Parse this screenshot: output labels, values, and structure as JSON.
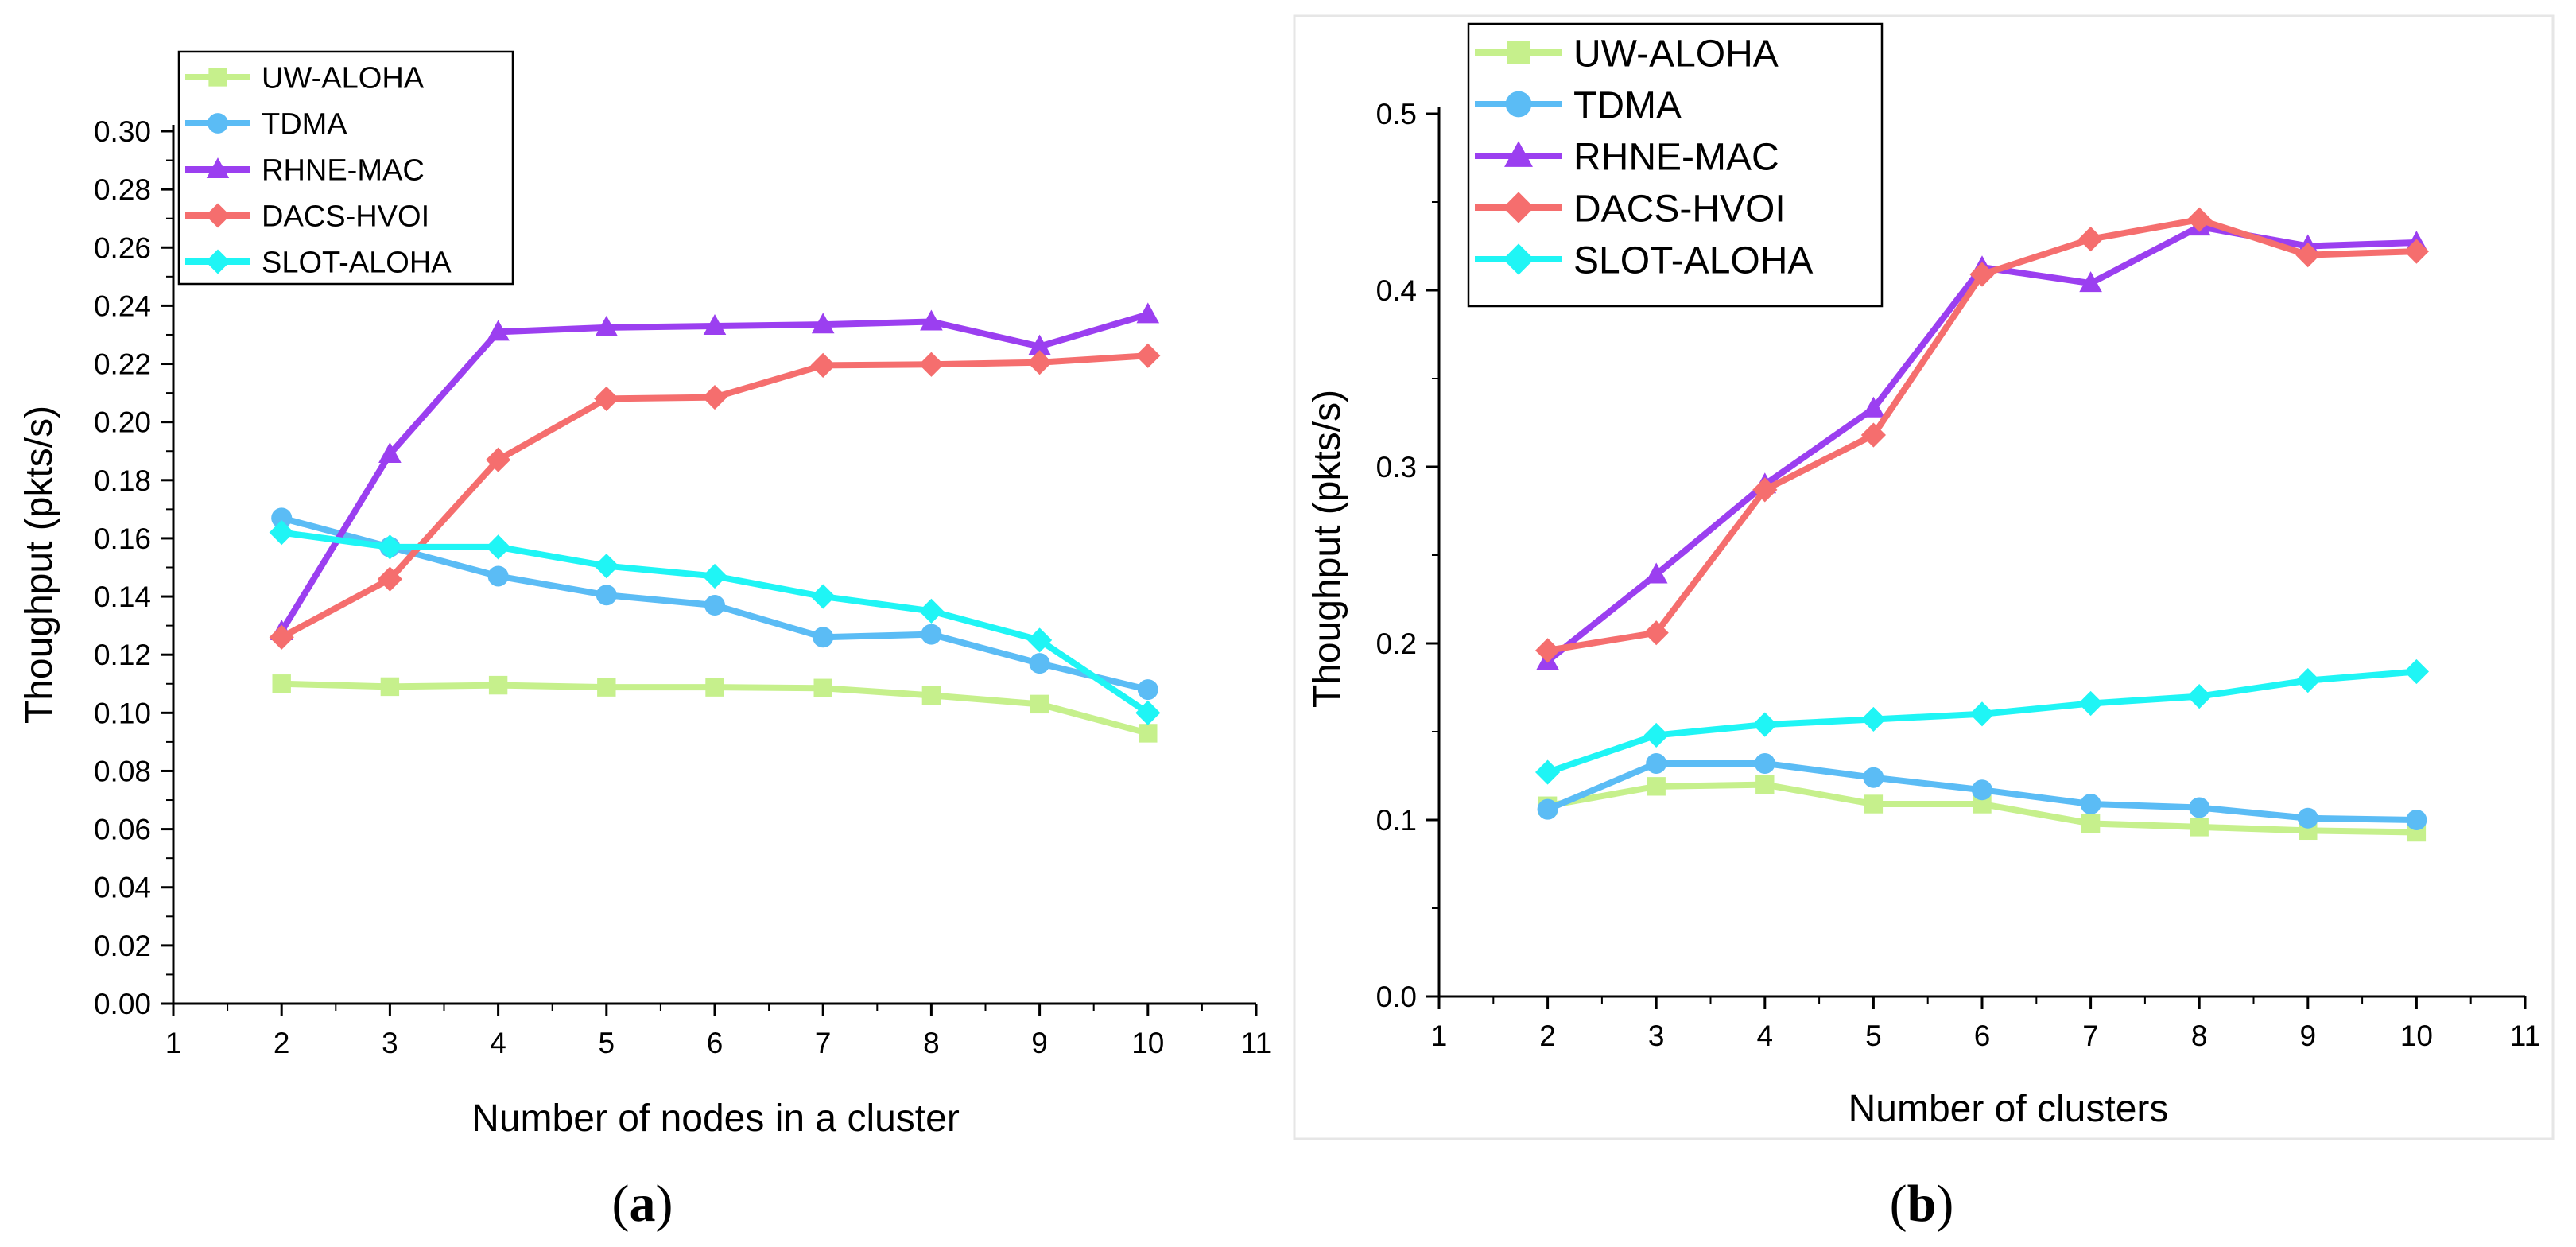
{
  "chart_data": [
    {
      "type": "line",
      "panel": "a",
      "caption_letter": "a",
      "caption_open": "(",
      "caption_close": ")",
      "xlabel": "Number of nodes in a cluster",
      "ylabel": "Thoughput (pkts/s)",
      "xlim": [
        1,
        11
      ],
      "ylim": [
        0,
        0.3
      ],
      "x_ticks": [
        "1",
        "2",
        "3",
        "4",
        "5",
        "6",
        "7",
        "8",
        "9",
        "10",
        "11"
      ],
      "y_ticks": [
        "0.00",
        "0.02",
        "0.04",
        "0.06",
        "0.08",
        "0.10",
        "0.12",
        "0.14",
        "0.16",
        "0.18",
        "0.20",
        "0.22",
        "0.24",
        "0.26",
        "0.28",
        "0.30"
      ],
      "x": [
        2,
        3,
        4,
        5,
        6,
        7,
        8,
        9,
        10
      ],
      "legend_position": "top-left",
      "series": [
        {
          "name": "UW-ALOHA",
          "color": "#c6f08c",
          "marker": "square",
          "values": [
            0.11,
            0.109,
            0.1095,
            0.1088,
            0.1088,
            0.1085,
            0.106,
            0.103,
            0.093
          ]
        },
        {
          "name": "TDMA",
          "color": "#5bbcf5",
          "marker": "circle",
          "values": [
            0.167,
            0.157,
            0.147,
            0.1405,
            0.137,
            0.126,
            0.127,
            0.117,
            0.108
          ]
        },
        {
          "name": "RHNE-MAC",
          "color": "#9b3ff0",
          "marker": "triangle",
          "values": [
            0.128,
            0.189,
            0.231,
            0.2325,
            0.233,
            0.2335,
            0.2345,
            0.226,
            0.237
          ]
        },
        {
          "name": "DACS-HVOI",
          "color": "#f56e6e",
          "marker": "diamond",
          "values": [
            0.126,
            0.146,
            0.187,
            0.208,
            0.2085,
            0.2195,
            0.2198,
            0.2205,
            0.2228
          ]
        },
        {
          "name": "SLOT-ALOHA",
          "color": "#1ff5f5",
          "marker": "diamond",
          "values": [
            0.162,
            0.157,
            0.157,
            0.1505,
            0.147,
            0.14,
            0.135,
            0.125,
            0.1
          ]
        }
      ]
    },
    {
      "type": "line",
      "panel": "b",
      "caption_letter": "b",
      "caption_open": "(",
      "caption_close": ")",
      "xlabel": "Number of clusters",
      "ylabel": "Thoughput (pkts/s)",
      "xlim": [
        1,
        11
      ],
      "ylim": [
        0,
        0.5
      ],
      "x_ticks": [
        "1",
        "2",
        "3",
        "4",
        "5",
        "6",
        "7",
        "8",
        "9",
        "10",
        "11"
      ],
      "y_ticks": [
        "0.0",
        "0.1",
        "0.2",
        "0.3",
        "0.4",
        "0.5"
      ],
      "x": [
        2,
        3,
        4,
        5,
        6,
        7,
        8,
        9,
        10
      ],
      "legend_position": "top-left",
      "series": [
        {
          "name": "UW-ALOHA",
          "color": "#c6f08c",
          "marker": "square",
          "values": [
            0.108,
            0.119,
            0.12,
            0.109,
            0.109,
            0.098,
            0.096,
            0.094,
            0.093
          ]
        },
        {
          "name": "TDMA",
          "color": "#5bbcf5",
          "marker": "circle",
          "values": [
            0.106,
            0.132,
            0.132,
            0.124,
            0.117,
            0.109,
            0.107,
            0.101,
            0.1
          ]
        },
        {
          "name": "RHNE-MAC",
          "color": "#9b3ff0",
          "marker": "triangle",
          "values": [
            0.19,
            0.239,
            0.29,
            0.333,
            0.413,
            0.404,
            0.436,
            0.425,
            0.427
          ]
        },
        {
          "name": "DACS-HVOI",
          "color": "#f56e6e",
          "marker": "diamond",
          "values": [
            0.196,
            0.206,
            0.287,
            0.318,
            0.409,
            0.429,
            0.44,
            0.42,
            0.422
          ]
        },
        {
          "name": "SLOT-ALOHA",
          "color": "#1ff5f5",
          "marker": "diamond",
          "values": [
            0.127,
            0.148,
            0.154,
            0.157,
            0.16,
            0.166,
            0.17,
            0.179,
            0.184
          ]
        }
      ]
    }
  ]
}
